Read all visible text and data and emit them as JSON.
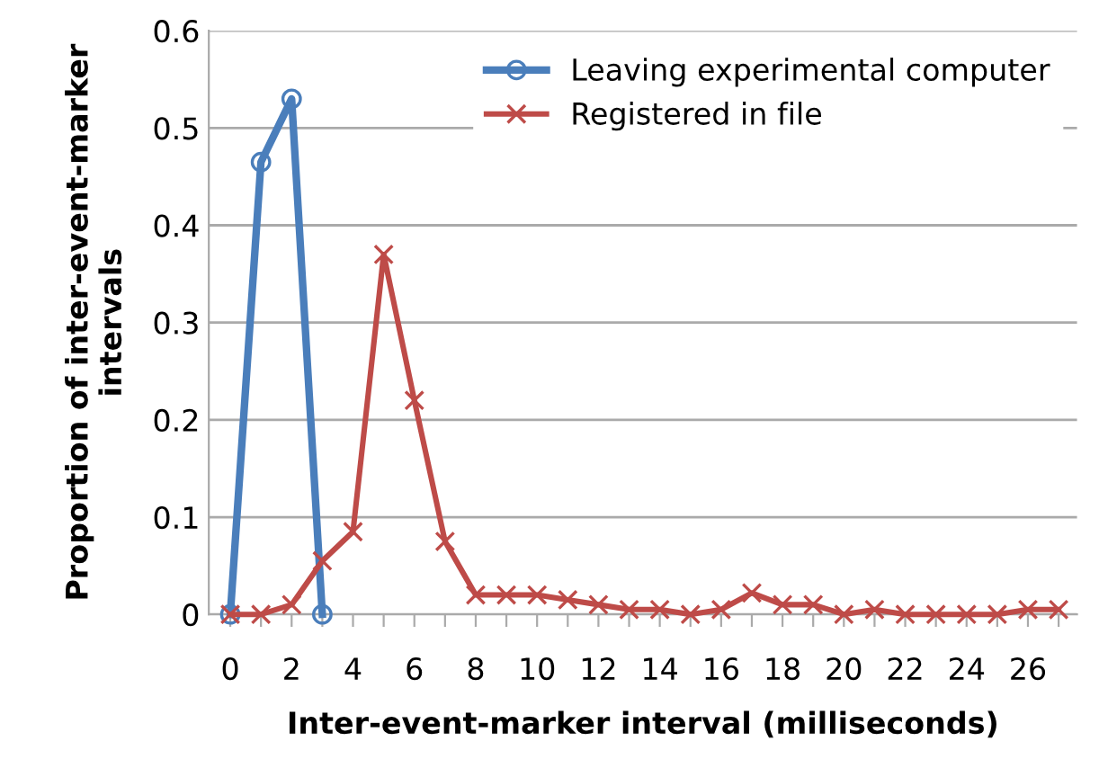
{
  "chart_data": {
    "type": "line",
    "xlabel": "Inter-event-marker interval (milliseconds)",
    "ylabel": "Proportion of inter-event-marker\nintervals",
    "categories": [
      "0",
      null,
      "2",
      null,
      "4",
      null,
      "6",
      null,
      "8",
      null,
      "10",
      null,
      "12",
      null,
      "14",
      null,
      "16",
      null,
      "18",
      null,
      "20",
      null,
      "22",
      null,
      "24",
      null,
      "26",
      null
    ],
    "series": [
      {
        "name": "Leaving experimental computer",
        "color": "#4a7ebb",
        "marker": "circle",
        "values": [
          0,
          0.465,
          0.53,
          0,
          null,
          null,
          null,
          null,
          null,
          null,
          null,
          null,
          null,
          null,
          null,
          null,
          null,
          null,
          null,
          null,
          null,
          null,
          null,
          null,
          null,
          null,
          null,
          null
        ]
      },
      {
        "name": "Registered in file",
        "color": "#be4b48",
        "marker": "cross",
        "values": [
          0,
          0,
          0.01,
          0.055,
          0.085,
          0.37,
          0.22,
          0.075,
          0.02,
          0.02,
          0.02,
          0.015,
          0.01,
          0.005,
          0.005,
          0,
          0.005,
          0.022,
          0.01,
          0.01,
          0,
          0.005,
          0,
          0,
          0,
          0,
          0.005,
          0.005
        ]
      }
    ],
    "ylim": [
      0,
      0.6
    ],
    "yticks": [
      0,
      0.1,
      0.2,
      0.3,
      0.4,
      0.5,
      0.6
    ],
    "grid": "y",
    "legend": "top right"
  }
}
